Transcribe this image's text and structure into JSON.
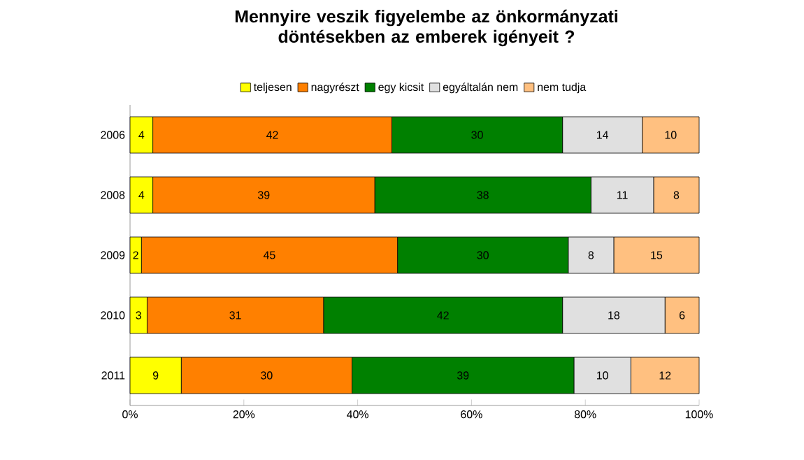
{
  "chart_data": {
    "type": "bar",
    "orientation": "horizontal",
    "stacked": true,
    "title": "Mennyire veszik figyelembe az önkormányzati döntésekben az emberek igényeit ?",
    "categories": [
      "2006",
      "2008",
      "2009",
      "2010",
      "2011"
    ],
    "series": [
      {
        "name": "teljesen",
        "color": "#ffff00",
        "values": [
          4,
          4,
          2,
          3,
          9
        ]
      },
      {
        "name": "nagyrészt",
        "color": "#ff8000",
        "values": [
          42,
          39,
          45,
          31,
          30
        ]
      },
      {
        "name": "egy kicsit",
        "color": "#008000",
        "values": [
          30,
          38,
          30,
          42,
          39
        ]
      },
      {
        "name": "egyáltalán nem",
        "color": "#e0e0e0",
        "values": [
          14,
          11,
          8,
          18,
          10
        ]
      },
      {
        "name": "nem tudja",
        "color": "#ffc080",
        "values": [
          10,
          8,
          15,
          6,
          12
        ]
      }
    ],
    "xlim": [
      0,
      100
    ],
    "xticks": [
      {
        "value": 0,
        "label": "0%"
      },
      {
        "value": 20,
        "label": "20%"
      },
      {
        "value": 40,
        "label": "40%"
      },
      {
        "value": 60,
        "label": "60%"
      },
      {
        "value": 80,
        "label": "80%"
      },
      {
        "value": 100,
        "label": "100%"
      }
    ],
    "data_labels": true,
    "legend": "top",
    "grid": false
  }
}
